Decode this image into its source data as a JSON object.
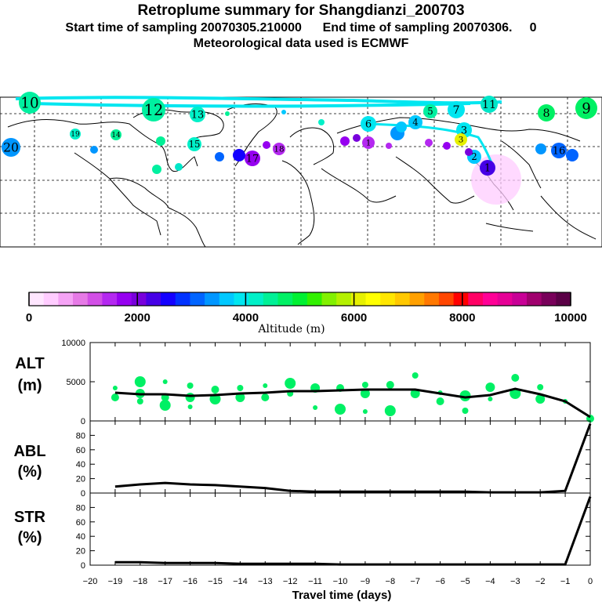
{
  "header": {
    "title": "Retroplume summary for Shangdianzi_200703",
    "sampling": "Start time of sampling 20070305.210000      End time of sampling 20070306.     0",
    "met": "Meteorological data used is ECMWF"
  },
  "colorbar": {
    "label": "Altitude (m)",
    "ticks": [
      "0",
      "2000",
      "4000",
      "6000",
      "8000",
      "10000"
    ],
    "colors": [
      "#ffe6ff",
      "#ffccff",
      "#f5a3f5",
      "#e67ae6",
      "#d24fe6",
      "#b428f0",
      "#9600f0",
      "#7800dc",
      "#4600e6",
      "#1400ff",
      "#0032ff",
      "#0064ff",
      "#0096ff",
      "#00c8ff",
      "#00e6f0",
      "#00f0c8",
      "#00f096",
      "#00f064",
      "#00f032",
      "#32f000",
      "#82f000",
      "#b4f000",
      "#e6f000",
      "#ffff00",
      "#ffe600",
      "#ffc800",
      "#ffa000",
      "#ff7800",
      "#ff4600",
      "#ff0000",
      "#ff0064",
      "#ff0096",
      "#e60096",
      "#c80096",
      "#a0006e",
      "#78005a",
      "#5a0046"
    ]
  },
  "map": {
    "numbers": [
      "10",
      "12",
      "13",
      "9",
      "8",
      "11",
      "7",
      "5",
      "4",
      "3",
      "2",
      "1",
      "14",
      "15",
      "16",
      "17",
      "18",
      "19",
      "20",
      "6",
      "3",
      "1"
    ]
  },
  "chart_data": [
    {
      "type": "line",
      "panel": "ALT",
      "ylabel": [
        "ALT",
        "(m)"
      ],
      "xlabel": "Travel time (days)",
      "xlim": [
        -20,
        0
      ],
      "ylim": [
        0,
        10000
      ],
      "yticks": [
        "10000",
        "5000",
        "0"
      ],
      "x": [
        -19,
        -18,
        -17,
        -16,
        -15,
        -14,
        -13,
        -12,
        -11,
        -10,
        -9,
        -8,
        -7,
        -6,
        -5,
        -4,
        -3,
        -2,
        -1,
        0
      ],
      "series": [
        {
          "name": "mean altitude",
          "values": [
            3600,
            3400,
            3400,
            3200,
            3300,
            3500,
            3600,
            3800,
            3800,
            3900,
            4000,
            4000,
            4000,
            3500,
            3000,
            3300,
            4100,
            3400,
            2500,
            500
          ]
        }
      ],
      "scatter_x": [
        -19,
        -19,
        -18,
        -18,
        -18,
        -17,
        -17,
        -17,
        -16,
        -16,
        -16,
        -15,
        -15,
        -14,
        -14,
        -13,
        -13,
        -12,
        -12,
        -11,
        -11,
        -10,
        -10,
        -9,
        -9,
        -9,
        -8,
        -8,
        -7,
        -7,
        -6,
        -6,
        -5,
        -5,
        -4,
        -4,
        -3,
        -3,
        -2,
        -2,
        -1,
        0
      ],
      "scatter_y": [
        4200,
        3000,
        5000,
        2500,
        3500,
        5000,
        3000,
        2000,
        4500,
        3000,
        1800,
        4000,
        2800,
        4200,
        3000,
        4500,
        3000,
        4800,
        3500,
        4200,
        1700,
        4200,
        1500,
        4600,
        3500,
        1200,
        4600,
        1300,
        5800,
        3500,
        3600,
        2500,
        3200,
        1300,
        4300,
        2800,
        5500,
        3500,
        4300,
        2800,
        2500,
        300
      ]
    },
    {
      "type": "line",
      "panel": "ABL",
      "ylabel": [
        "ABL",
        "(%)"
      ],
      "xlim": [
        -20,
        0
      ],
      "ylim": [
        0,
        100
      ],
      "yticks": [
        "80",
        "60",
        "40",
        "20",
        "0"
      ],
      "x": [
        -19,
        -18,
        -17,
        -16,
        -15,
        -14,
        -13,
        -12,
        -11,
        -10,
        -9,
        -8,
        -7,
        -6,
        -5,
        -4,
        -3,
        -2,
        -1,
        0
      ],
      "values": [
        9,
        12,
        14,
        12,
        11,
        9,
        7,
        3,
        2,
        2,
        2,
        2,
        2,
        2,
        2,
        1,
        1,
        1,
        3,
        96
      ]
    },
    {
      "type": "line",
      "panel": "STR",
      "ylabel": [
        "STR",
        "(%)"
      ],
      "xlim": [
        -20,
        0
      ],
      "ylim": [
        0,
        100
      ],
      "yticks": [
        "80",
        "60",
        "40",
        "20",
        "0"
      ],
      "xticks": [
        "−20",
        "−19",
        "−18",
        "−17",
        "−16",
        "−15",
        "−14",
        "−13",
        "−12",
        "−11",
        "−10",
        "−9",
        "−8",
        "−7",
        "−6",
        "−5",
        "−4",
        "−3",
        "−2",
        "−1",
        "0"
      ],
      "x": [
        -19,
        -18,
        -17,
        -16,
        -15,
        -14,
        -13,
        -12,
        -11,
        -10,
        -9,
        -8,
        -7,
        -6,
        -5,
        -4,
        -3,
        -2,
        -1,
        0
      ],
      "values": [
        4,
        4,
        3,
        3,
        3,
        2,
        2,
        2,
        2,
        1,
        1,
        1,
        1,
        1,
        1,
        1,
        1,
        1,
        1,
        95
      ]
    }
  ]
}
